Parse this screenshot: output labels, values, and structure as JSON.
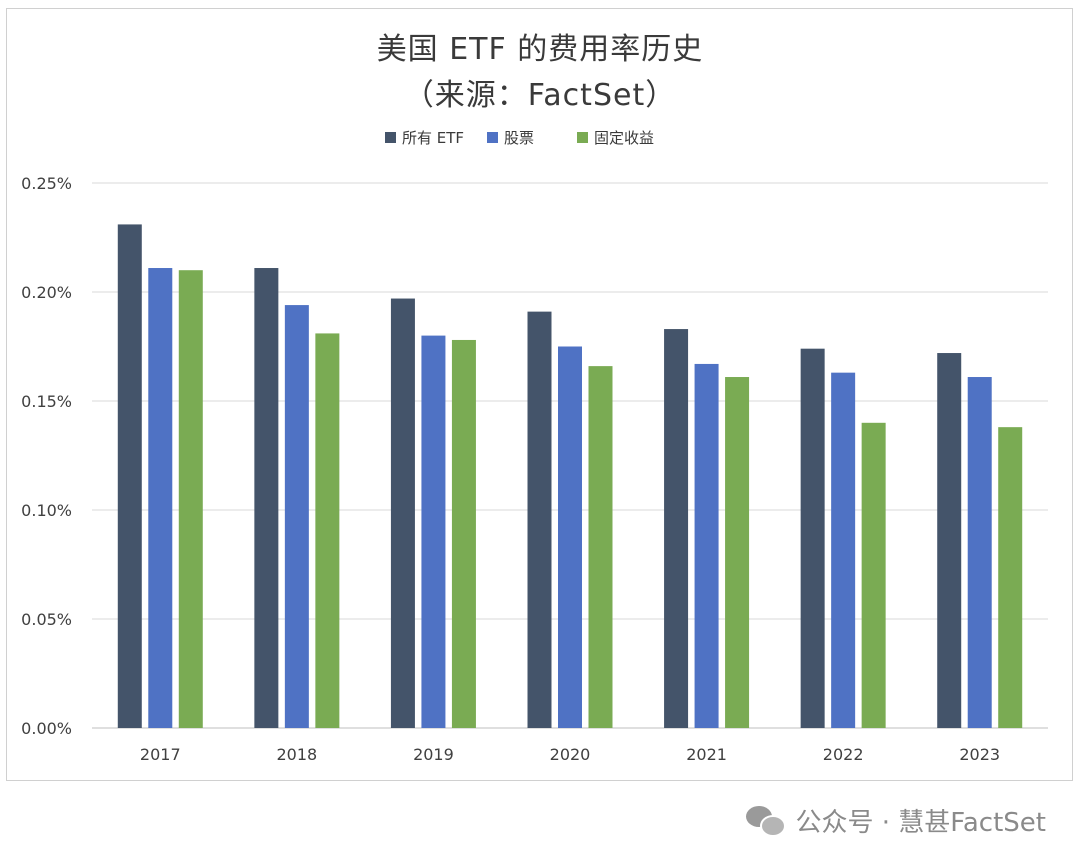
{
  "chart_data": {
    "type": "bar",
    "title": "美国 ETF 的费用率历史",
    "subtitle": "（来源：FactSet）",
    "categories": [
      "2017",
      "2018",
      "2019",
      "2020",
      "2021",
      "2022",
      "2023"
    ],
    "series": [
      {
        "name": "所有 ETF",
        "color": "#44546a",
        "values": [
          0.231,
          0.211,
          0.197,
          0.191,
          0.183,
          0.174,
          0.172
        ]
      },
      {
        "name": "股票",
        "color": "#4f72c4",
        "values": [
          0.211,
          0.194,
          0.18,
          0.175,
          0.167,
          0.163,
          0.161
        ]
      },
      {
        "name": "固定收益",
        "color": "#7aab53",
        "values": [
          0.21,
          0.181,
          0.178,
          0.166,
          0.161,
          0.14,
          0.138
        ]
      }
    ],
    "ylim": [
      0,
      0.25
    ],
    "yticks": [
      "0.00%",
      "0.05%",
      "0.10%",
      "0.15%",
      "0.20%",
      "0.25%"
    ],
    "ytick_values": [
      0,
      0.05,
      0.1,
      0.15,
      0.2,
      0.25
    ],
    "grid": true,
    "legend_position": "top-center"
  },
  "watermark": {
    "icon": "wechat-icon",
    "text": "公众号 · 慧甚FactSet"
  }
}
